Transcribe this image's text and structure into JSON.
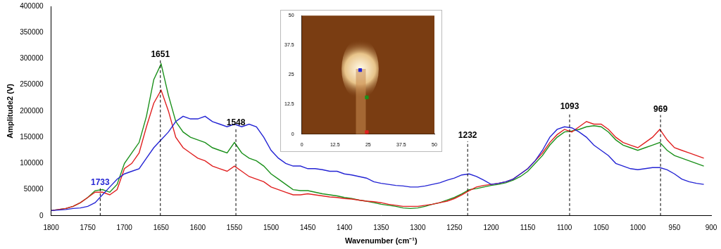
{
  "chart_data": [
    {
      "type": "line",
      "x_label": "Wavenumber (cm⁻¹)",
      "y_label": "Amplitude2 (V)",
      "x": [
        1800,
        1790,
        1780,
        1770,
        1760,
        1750,
        1740,
        1730,
        1720,
        1710,
        1700,
        1690,
        1680,
        1670,
        1660,
        1650,
        1640,
        1630,
        1620,
        1610,
        1600,
        1590,
        1580,
        1570,
        1560,
        1550,
        1540,
        1530,
        1520,
        1510,
        1500,
        1490,
        1480,
        1470,
        1460,
        1450,
        1440,
        1430,
        1420,
        1410,
        1400,
        1390,
        1380,
        1370,
        1360,
        1350,
        1340,
        1330,
        1320,
        1310,
        1300,
        1290,
        1280,
        1270,
        1260,
        1250,
        1240,
        1230,
        1220,
        1210,
        1200,
        1190,
        1180,
        1170,
        1160,
        1150,
        1140,
        1130,
        1120,
        1110,
        1100,
        1090,
        1080,
        1070,
        1060,
        1050,
        1040,
        1030,
        1020,
        1010,
        1000,
        990,
        980,
        970,
        960,
        950,
        940,
        930,
        920,
        910
      ],
      "series": [
        {
          "color": "#2424d4",
          "values": [
            10000,
            11000,
            12000,
            14000,
            15000,
            18000,
            25000,
            40000,
            55000,
            70000,
            80000,
            85000,
            90000,
            110000,
            130000,
            145000,
            160000,
            180000,
            190000,
            185000,
            185000,
            190000,
            180000,
            175000,
            170000,
            175000,
            170000,
            175000,
            170000,
            150000,
            125000,
            110000,
            100000,
            95000,
            95000,
            90000,
            90000,
            88000,
            85000,
            85000,
            80000,
            78000,
            75000,
            72000,
            65000,
            62000,
            60000,
            58000,
            57000,
            55000,
            55000,
            57000,
            60000,
            63000,
            68000,
            72000,
            78000,
            80000,
            75000,
            68000,
            60000,
            62000,
            65000,
            70000,
            80000,
            90000,
            105000,
            125000,
            150000,
            165000,
            170000,
            168000,
            160000,
            150000,
            135000,
            125000,
            115000,
            100000,
            95000,
            90000,
            88000,
            90000,
            92000,
            92000,
            88000,
            80000,
            70000,
            65000,
            62000,
            60000
          ]
        },
        {
          "color": "#e02020",
          "values": [
            10000,
            12000,
            14000,
            18000,
            25000,
            35000,
            45000,
            45000,
            40000,
            50000,
            90000,
            100000,
            120000,
            170000,
            215000,
            240000,
            200000,
            150000,
            130000,
            120000,
            110000,
            105000,
            95000,
            90000,
            85000,
            95000,
            85000,
            75000,
            70000,
            65000,
            55000,
            50000,
            45000,
            40000,
            40000,
            42000,
            40000,
            38000,
            36000,
            35000,
            33000,
            32000,
            30000,
            28000,
            27000,
            25000,
            22000,
            20000,
            18000,
            18000,
            18000,
            20000,
            22000,
            25000,
            28000,
            33000,
            40000,
            48000,
            55000,
            58000,
            60000,
            62000,
            65000,
            70000,
            80000,
            90000,
            105000,
            120000,
            140000,
            155000,
            165000,
            160000,
            170000,
            180000,
            175000,
            175000,
            165000,
            150000,
            140000,
            135000,
            130000,
            140000,
            150000,
            165000,
            145000,
            130000,
            125000,
            120000,
            115000,
            110000
          ]
        },
        {
          "color": "#1a901a",
          "values": [
            10000,
            12000,
            14000,
            18000,
            25000,
            35000,
            48000,
            50000,
            45000,
            60000,
            100000,
            120000,
            140000,
            190000,
            260000,
            290000,
            230000,
            180000,
            160000,
            150000,
            145000,
            140000,
            130000,
            125000,
            120000,
            140000,
            120000,
            110000,
            105000,
            95000,
            80000,
            70000,
            60000,
            50000,
            48000,
            48000,
            45000,
            42000,
            40000,
            38000,
            35000,
            33000,
            30000,
            28000,
            25000,
            22000,
            20000,
            18000,
            15000,
            14000,
            15000,
            18000,
            22000,
            25000,
            30000,
            35000,
            42000,
            50000,
            52000,
            55000,
            58000,
            60000,
            63000,
            68000,
            75000,
            85000,
            100000,
            115000,
            135000,
            150000,
            160000,
            162000,
            165000,
            170000,
            172000,
            170000,
            160000,
            145000,
            135000,
            130000,
            125000,
            130000,
            135000,
            140000,
            125000,
            115000,
            110000,
            105000,
            100000,
            95000
          ]
        }
      ],
      "xlim": [
        1800,
        900
      ],
      "xticks": [
        1800,
        1750,
        1700,
        1650,
        1600,
        1550,
        1500,
        1450,
        1400,
        1350,
        1300,
        1250,
        1200,
        1150,
        1100,
        1050,
        1000,
        950,
        900
      ],
      "ylim": [
        0,
        400000
      ],
      "yticks": [
        0,
        50000,
        100000,
        150000,
        200000,
        250000,
        300000,
        350000,
        400000
      ],
      "grid": false,
      "annotations": [
        {
          "x": 1733,
          "y": 55000,
          "label": "1733",
          "color": "#2424d4",
          "line_style": "dashed"
        },
        {
          "x": 1651,
          "y": 300000,
          "label": "1651",
          "color": "#000000",
          "line_style": "dashed"
        },
        {
          "x": 1548,
          "y": 170000,
          "label": "1548",
          "color": "#000000",
          "line_style": "dashed"
        },
        {
          "x": 1232,
          "y": 145000,
          "label": "1232",
          "color": "#000000",
          "line_style": "dashed"
        },
        {
          "x": 1093,
          "y": 200000,
          "label": "1093",
          "color": "#000000",
          "line_style": "dashed"
        },
        {
          "x": 969,
          "y": 195000,
          "label": "969",
          "color": "#000000",
          "line_style": "dashed"
        }
      ]
    },
    {
      "type": "scatter",
      "marker": "square",
      "series": [
        {
          "color": "#2424d4",
          "x": [
            22
          ],
          "values": [
            27
          ]
        },
        {
          "color": "#1a901a",
          "x": [
            24.5
          ],
          "values": [
            15.5
          ]
        },
        {
          "color": "#e02020",
          "x": [
            24.5
          ],
          "values": [
            0.8
          ]
        }
      ],
      "xlim": [
        0,
        50
      ],
      "xticks": [
        0,
        12.5,
        25,
        37.5,
        50
      ],
      "ylim": [
        0,
        50
      ],
      "yticks": [
        0,
        12.5,
        25,
        37.5,
        50
      ],
      "grid": false
    }
  ]
}
